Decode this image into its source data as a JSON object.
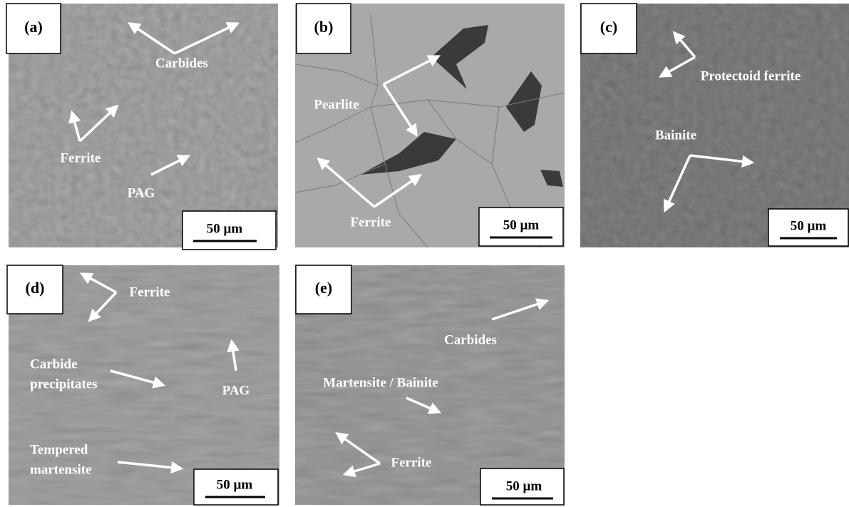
{
  "panels": [
    {
      "label": "(a)",
      "scale_bar": "50  µm",
      "annotations": [
        [
          "Carbides"
        ],
        [
          "Ferrite"
        ],
        [
          "PAG"
        ]
      ]
    },
    {
      "label": "(b)",
      "scale_bar": "50 µm",
      "annotations": [
        [
          "Pearlite"
        ],
        [
          "Ferrite"
        ]
      ]
    },
    {
      "label": "(c)",
      "scale_bar": "50 µm",
      "annotations": [
        [
          "Protectoid ferrite"
        ],
        [
          "Bainite"
        ]
      ]
    },
    {
      "label": "(d)",
      "scale_bar": "50  µm",
      "annotations": [
        [
          "Ferrite"
        ],
        [
          "Carbide",
          "precipitates"
        ],
        [
          "PAG"
        ],
        [
          "Tempered",
          "martensite"
        ]
      ]
    },
    {
      "label": "(e)",
      "scale_bar": "50  µm",
      "annotations": [
        [
          "Carbides"
        ],
        [
          "Martensite / Bainite"
        ],
        [
          "Ferrite"
        ]
      ]
    }
  ]
}
